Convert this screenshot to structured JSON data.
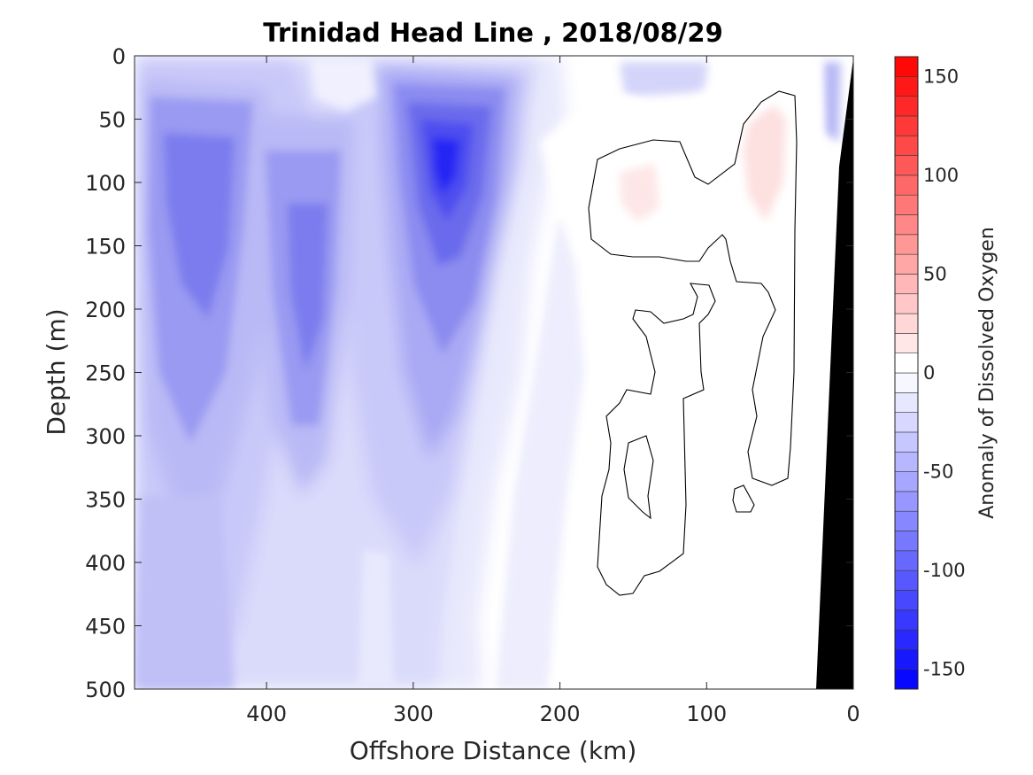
{
  "chart_data": {
    "type": "heatmap",
    "subtype": "filled-contour section",
    "title": "Trinidad Head Line , 2018/08/29",
    "xlabel": "Offshore Distance (km)",
    "ylabel": "Depth (m)",
    "x_direction": "reversed",
    "xlim": [
      0,
      490
    ],
    "ylim": [
      0,
      500
    ],
    "y_direction": "reversed",
    "x_ticks": [
      400,
      300,
      200,
      100,
      0
    ],
    "x_tick_labels": [
      "400",
      "300",
      "200",
      "100",
      "0"
    ],
    "y_ticks": [
      0,
      50,
      100,
      150,
      200,
      250,
      300,
      350,
      400,
      450,
      500
    ],
    "y_tick_labels": [
      "0",
      "50",
      "100",
      "150",
      "200",
      "250",
      "300",
      "350",
      "400",
      "450",
      "500"
    ],
    "grid": false,
    "colorbar": {
      "label": "Anomaly of Dissolved Oxygen",
      "range": [
        -160,
        160
      ],
      "level_step": 10,
      "ticks": [
        150,
        100,
        50,
        0,
        -50,
        -100,
        -150
      ],
      "tick_labels": [
        "150",
        "100",
        "50",
        "0",
        "-50",
        "-100",
        "-150"
      ],
      "colormap": "blue-white-red",
      "low_color": "#0000ff",
      "high_color": "#ff0000"
    },
    "features": [
      {
        "kind": "minimum",
        "x_km": 280,
        "depth_m": 95,
        "value": -120
      },
      {
        "kind": "minimum",
        "x_km": 445,
        "depth_m": 120,
        "value": -80
      },
      {
        "kind": "minimum",
        "x_km": 370,
        "depth_m": 230,
        "value": -75
      },
      {
        "kind": "maximum",
        "x_km": 50,
        "depth_m": 80,
        "value": 15
      },
      {
        "kind": "maximum",
        "x_km": 145,
        "depth_m": 110,
        "value": 10
      }
    ],
    "bathymetry_fill": "#000000"
  }
}
